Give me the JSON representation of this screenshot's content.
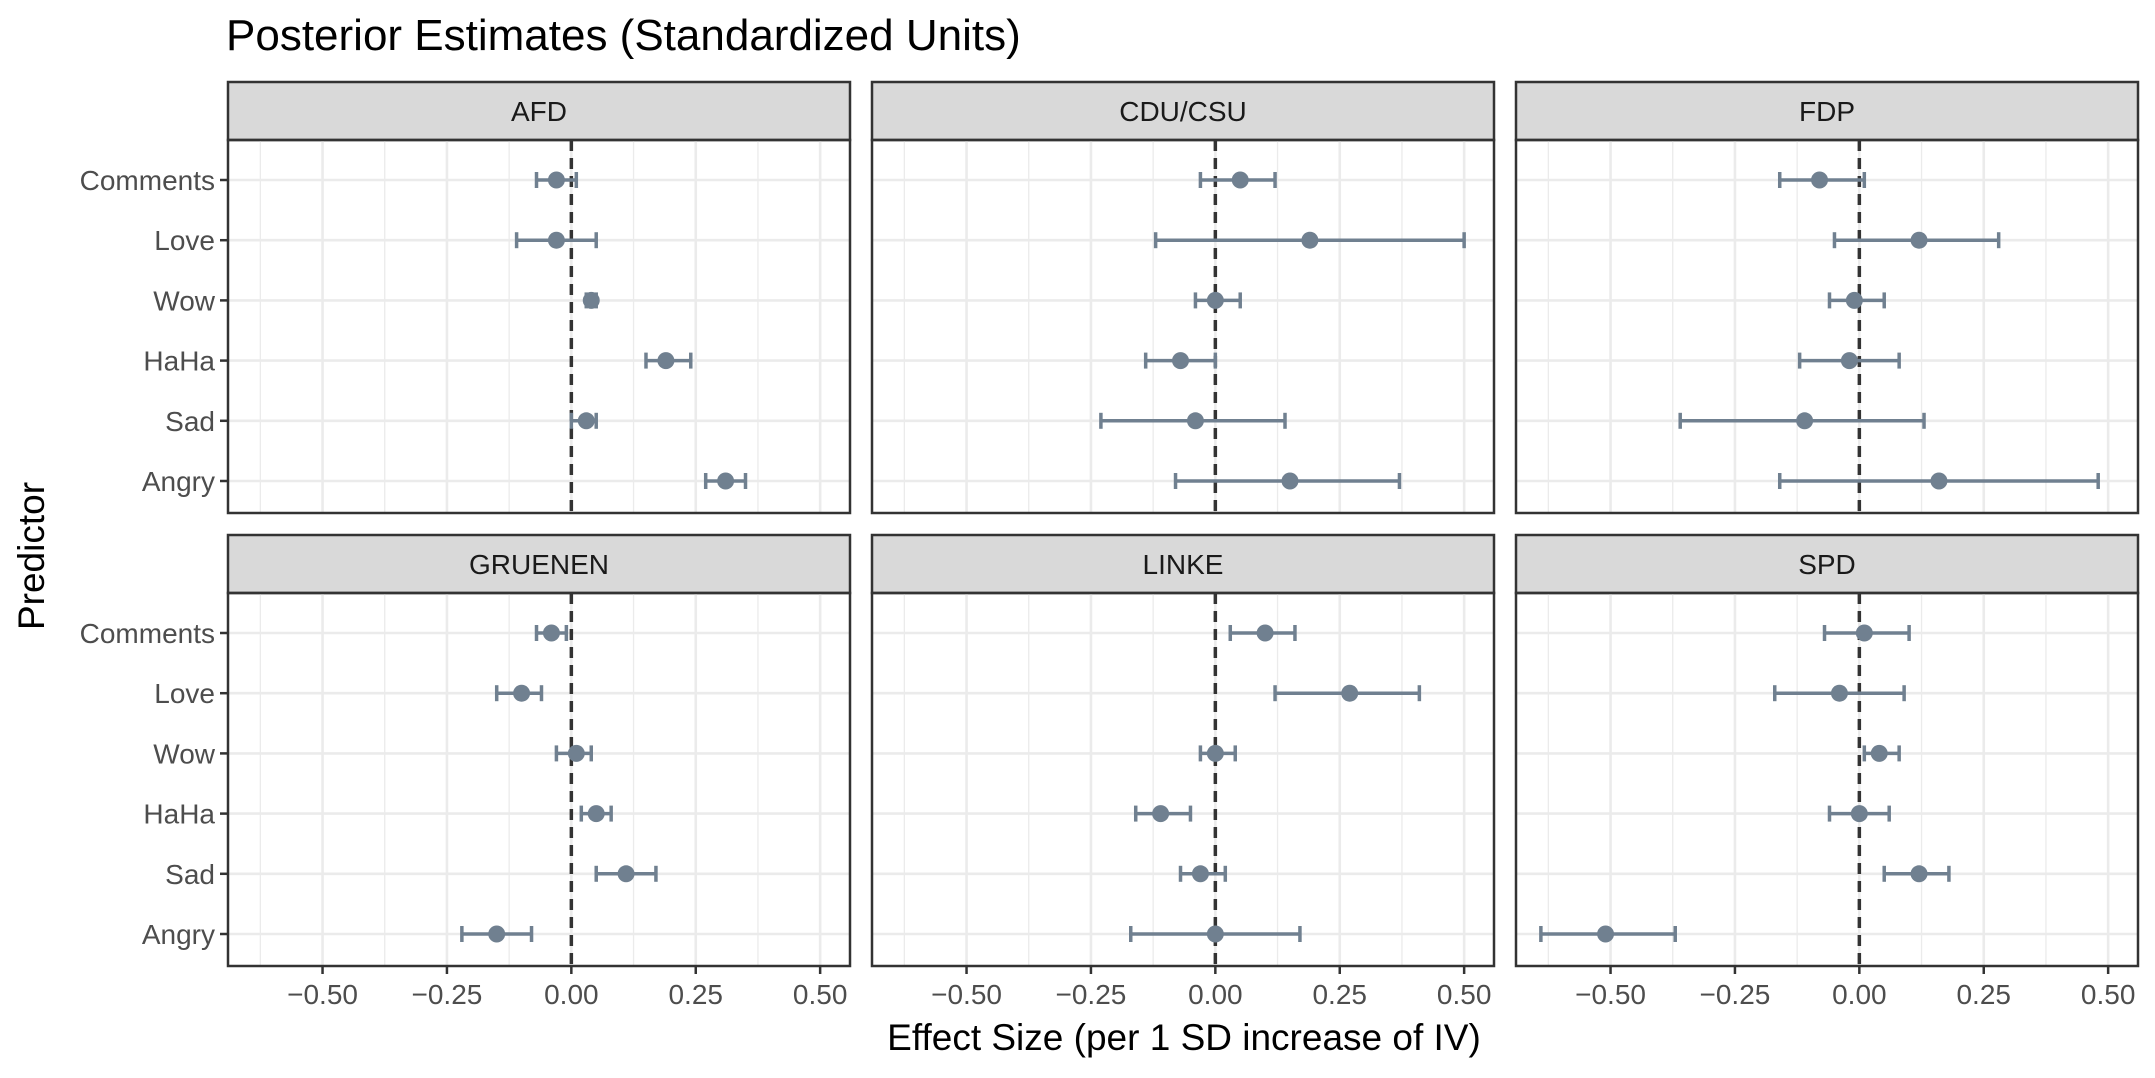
{
  "chart_data": {
    "type": "scatter",
    "subtype": "point-range forest plot, faceted 2x3",
    "title": "Posterior Estimates (Standardized Units)",
    "xlabel": "Effect Size (per 1 SD increase of IV)",
    "ylabel": "Predictor",
    "xlim": [
      -0.69,
      0.56
    ],
    "x_ticks": [
      -0.5,
      -0.25,
      0.0,
      0.25,
      0.5
    ],
    "x_tick_labels": [
      "−0.50",
      "−0.25",
      "0.00",
      "0.25",
      "0.50"
    ],
    "predictors": [
      "Comments",
      "Love",
      "Wow",
      "HaHa",
      "Sad",
      "Angry"
    ],
    "reference_line": 0,
    "grid": true,
    "point_color": "#708090",
    "reference_line_color": "#333333",
    "strip_fill": "#d9d9d9",
    "panels": [
      {
        "name": "AFD",
        "estimates": [
          {
            "predictor": "Comments",
            "mean": -0.03,
            "lower": -0.07,
            "upper": 0.01
          },
          {
            "predictor": "Love",
            "mean": -0.03,
            "lower": -0.11,
            "upper": 0.05
          },
          {
            "predictor": "Wow",
            "mean": 0.04,
            "lower": 0.03,
            "upper": 0.05
          },
          {
            "predictor": "HaHa",
            "mean": 0.19,
            "lower": 0.15,
            "upper": 0.24
          },
          {
            "predictor": "Sad",
            "mean": 0.03,
            "lower": 0.0,
            "upper": 0.05
          },
          {
            "predictor": "Angry",
            "mean": 0.31,
            "lower": 0.27,
            "upper": 0.35
          }
        ]
      },
      {
        "name": "CDU/CSU",
        "estimates": [
          {
            "predictor": "Comments",
            "mean": 0.05,
            "lower": -0.03,
            "upper": 0.12
          },
          {
            "predictor": "Love",
            "mean": 0.19,
            "lower": -0.12,
            "upper": 0.5
          },
          {
            "predictor": "Wow",
            "mean": 0.0,
            "lower": -0.04,
            "upper": 0.05
          },
          {
            "predictor": "HaHa",
            "mean": -0.07,
            "lower": -0.14,
            "upper": 0.0
          },
          {
            "predictor": "Sad",
            "mean": -0.04,
            "lower": -0.23,
            "upper": 0.14
          },
          {
            "predictor": "Angry",
            "mean": 0.15,
            "lower": -0.08,
            "upper": 0.37
          }
        ]
      },
      {
        "name": "FDP",
        "estimates": [
          {
            "predictor": "Comments",
            "mean": -0.08,
            "lower": -0.16,
            "upper": 0.01
          },
          {
            "predictor": "Love",
            "mean": 0.12,
            "lower": -0.05,
            "upper": 0.28
          },
          {
            "predictor": "Wow",
            "mean": -0.01,
            "lower": -0.06,
            "upper": 0.05
          },
          {
            "predictor": "HaHa",
            "mean": -0.02,
            "lower": -0.12,
            "upper": 0.08
          },
          {
            "predictor": "Sad",
            "mean": -0.11,
            "lower": -0.36,
            "upper": 0.13
          },
          {
            "predictor": "Angry",
            "mean": 0.16,
            "lower": -0.16,
            "upper": 0.48
          }
        ]
      },
      {
        "name": "GRUENEN",
        "estimates": [
          {
            "predictor": "Comments",
            "mean": -0.04,
            "lower": -0.07,
            "upper": -0.01
          },
          {
            "predictor": "Love",
            "mean": -0.1,
            "lower": -0.15,
            "upper": -0.06
          },
          {
            "predictor": "Wow",
            "mean": 0.01,
            "lower": -0.03,
            "upper": 0.04
          },
          {
            "predictor": "HaHa",
            "mean": 0.05,
            "lower": 0.02,
            "upper": 0.08
          },
          {
            "predictor": "Sad",
            "mean": 0.11,
            "lower": 0.05,
            "upper": 0.17
          },
          {
            "predictor": "Angry",
            "mean": -0.15,
            "lower": -0.22,
            "upper": -0.08
          }
        ]
      },
      {
        "name": "LINKE",
        "estimates": [
          {
            "predictor": "Comments",
            "mean": 0.1,
            "lower": 0.03,
            "upper": 0.16
          },
          {
            "predictor": "Love",
            "mean": 0.27,
            "lower": 0.12,
            "upper": 0.41
          },
          {
            "predictor": "Wow",
            "mean": 0.0,
            "lower": -0.03,
            "upper": 0.04
          },
          {
            "predictor": "HaHa",
            "mean": -0.11,
            "lower": -0.16,
            "upper": -0.05
          },
          {
            "predictor": "Sad",
            "mean": -0.03,
            "lower": -0.07,
            "upper": 0.02
          },
          {
            "predictor": "Angry",
            "mean": 0.0,
            "lower": -0.17,
            "upper": 0.17
          }
        ]
      },
      {
        "name": "SPD",
        "estimates": [
          {
            "predictor": "Comments",
            "mean": 0.01,
            "lower": -0.07,
            "upper": 0.1
          },
          {
            "predictor": "Love",
            "mean": -0.04,
            "lower": -0.17,
            "upper": 0.09
          },
          {
            "predictor": "Wow",
            "mean": 0.04,
            "lower": 0.01,
            "upper": 0.08
          },
          {
            "predictor": "HaHa",
            "mean": 0.0,
            "lower": -0.06,
            "upper": 0.06
          },
          {
            "predictor": "Sad",
            "mean": 0.12,
            "lower": 0.05,
            "upper": 0.18
          },
          {
            "predictor": "Angry",
            "mean": -0.51,
            "lower": -0.64,
            "upper": -0.37
          }
        ]
      }
    ]
  }
}
